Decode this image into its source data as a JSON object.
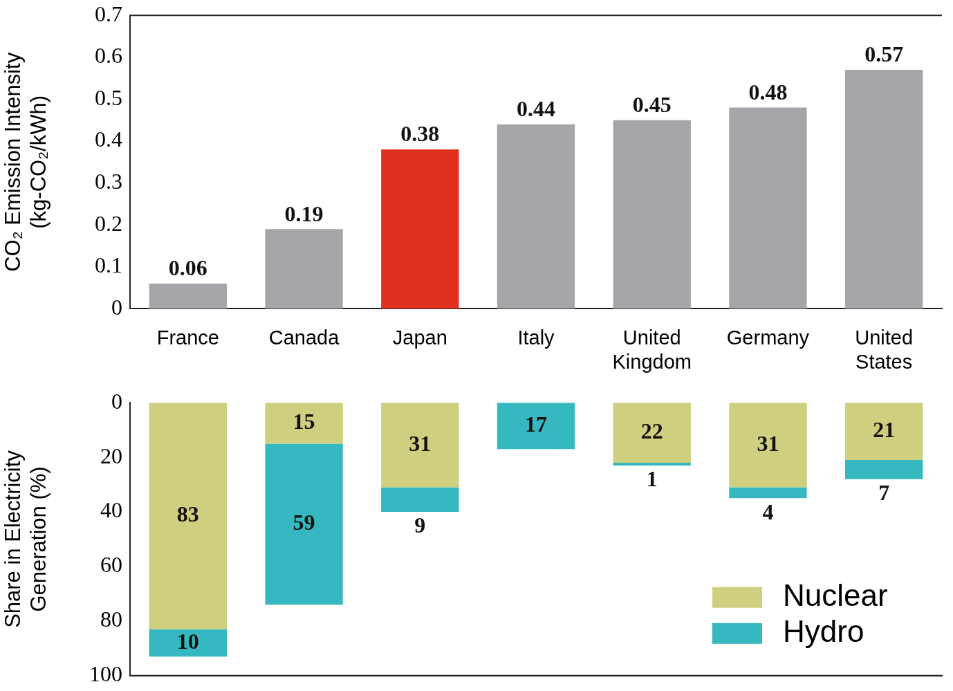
{
  "chart_data": [
    {
      "type": "bar",
      "ylabel": "CO₂ Emission Intensity\n(kg-CO₂/kWh)",
      "categories": [
        "France",
        "Canada",
        "Japan",
        "Italy",
        "United Kingdom",
        "Germany",
        "United States"
      ],
      "values": [
        0.06,
        0.19,
        0.38,
        0.44,
        0.45,
        0.48,
        0.57
      ],
      "colors": [
        "#a4a6aa",
        "#a4a6aa",
        "#e0301e",
        "#a4a6aa",
        "#a4a6aa",
        "#a4a6aa",
        "#a4a6aa"
      ],
      "ylim": [
        0,
        0.7
      ],
      "yticks": [
        0,
        0.1,
        0.2,
        0.3,
        0.4,
        0.5,
        0.6,
        0.7
      ],
      "data_labels": true,
      "grid": false
    },
    {
      "type": "bar",
      "ylabel": "Share in Electricity\nGeneration (%)",
      "categories": [
        null,
        null,
        null,
        null,
        null,
        null,
        null
      ],
      "stacked": true,
      "series": [
        {
          "name": "Nuclear",
          "color": "#cfcf80",
          "values": [
            83,
            15,
            31,
            0,
            22,
            31,
            21
          ],
          "value_labels": [
            "83",
            "15",
            "31",
            null,
            "22",
            "31",
            "21"
          ]
        },
        {
          "name": "Hydro",
          "color": "#35b8bf",
          "values": [
            10,
            59,
            9,
            17,
            1,
            4,
            7
          ],
          "value_labels": [
            "10",
            "59",
            "9",
            "17",
            "1",
            "4",
            "7"
          ]
        }
      ],
      "ylim": [
        100,
        0
      ],
      "yticks": [
        0,
        20,
        40,
        60,
        80,
        100
      ],
      "tick_labels": "y",
      "legend": "bottom right",
      "grid": false
    }
  ]
}
